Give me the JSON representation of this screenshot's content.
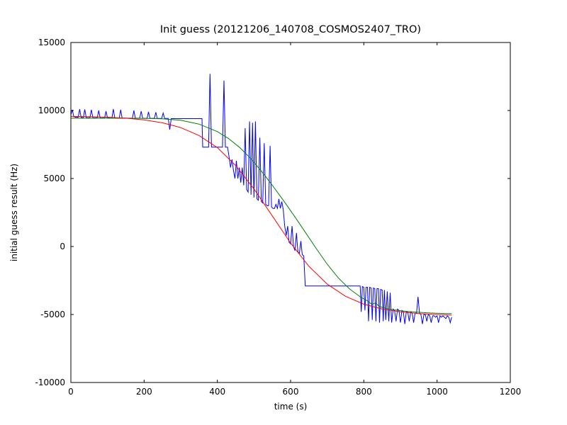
{
  "chart_data": {
    "type": "line",
    "title": "Init guess (20121206_140708_COSMOS2407_TRO)",
    "xlabel": "time (s)",
    "ylabel": "initial guess result (Hz)",
    "xlim": [
      0,
      1200
    ],
    "ylim": [
      -10000,
      15000
    ],
    "xticks": [
      0,
      200,
      400,
      600,
      800,
      1000,
      1200
    ],
    "yticks": [
      -10000,
      -5000,
      0,
      5000,
      10000,
      15000
    ],
    "grid": false,
    "legend": false,
    "frame_color": "#000000",
    "series": [
      {
        "name": "blue",
        "color": "#0000ff",
        "points": [
          [
            0,
            9700
          ],
          [
            4,
            10050
          ],
          [
            8,
            9550
          ],
          [
            14,
            9500
          ],
          [
            20,
            9500
          ],
          [
            24,
            10100
          ],
          [
            28,
            9480
          ],
          [
            34,
            9480
          ],
          [
            38,
            10080
          ],
          [
            42,
            9470
          ],
          [
            52,
            9470
          ],
          [
            56,
            10050
          ],
          [
            60,
            9460
          ],
          [
            72,
            9460
          ],
          [
            76,
            10000
          ],
          [
            80,
            9450
          ],
          [
            92,
            9450
          ],
          [
            96,
            9950
          ],
          [
            100,
            9450
          ],
          [
            112,
            9450
          ],
          [
            116,
            10100
          ],
          [
            120,
            9440
          ],
          [
            132,
            9440
          ],
          [
            136,
            10050
          ],
          [
            140,
            9440
          ],
          [
            152,
            9440
          ],
          [
            156,
            9430
          ],
          [
            168,
            9430
          ],
          [
            172,
            10000
          ],
          [
            176,
            9430
          ],
          [
            188,
            9430
          ],
          [
            192,
            9950
          ],
          [
            196,
            9420
          ],
          [
            208,
            9420
          ],
          [
            212,
            9900
          ],
          [
            216,
            9420
          ],
          [
            228,
            9420
          ],
          [
            232,
            9870
          ],
          [
            236,
            9410
          ],
          [
            248,
            9410
          ],
          [
            252,
            9820
          ],
          [
            256,
            9410
          ],
          [
            266,
            9410
          ],
          [
            270,
            8600
          ],
          [
            274,
            9400
          ],
          [
            290,
            9400
          ],
          [
            310,
            9400
          ],
          [
            330,
            9400
          ],
          [
            350,
            9400
          ],
          [
            358,
            9400
          ],
          [
            360,
            7300
          ],
          [
            368,
            7300
          ],
          [
            376,
            7300
          ],
          [
            380,
            12700
          ],
          [
            384,
            7300
          ],
          [
            392,
            7300
          ],
          [
            400,
            7300
          ],
          [
            410,
            7300
          ],
          [
            414,
            7300
          ],
          [
            418,
            12200
          ],
          [
            422,
            7300
          ],
          [
            428,
            7300
          ],
          [
            432,
            6600
          ],
          [
            436,
            5800
          ],
          [
            440,
            6400
          ],
          [
            444,
            5600
          ],
          [
            448,
            5000
          ],
          [
            452,
            6300
          ],
          [
            456,
            5000
          ],
          [
            460,
            5800
          ],
          [
            464,
            4700
          ],
          [
            468,
            5800
          ],
          [
            472,
            4500
          ],
          [
            476,
            8700
          ],
          [
            480,
            4200
          ],
          [
            484,
            4000
          ],
          [
            488,
            9200
          ],
          [
            492,
            3800
          ],
          [
            496,
            9100
          ],
          [
            500,
            3600
          ],
          [
            504,
            9200
          ],
          [
            508,
            3500
          ],
          [
            512,
            3400
          ],
          [
            516,
            8000
          ],
          [
            520,
            3300
          ],
          [
            524,
            3200
          ],
          [
            528,
            7600
          ],
          [
            532,
            3100
          ],
          [
            536,
            3000
          ],
          [
            540,
            3000
          ],
          [
            544,
            7400
          ],
          [
            548,
            2900
          ],
          [
            552,
            2800
          ],
          [
            556,
            2800
          ],
          [
            560,
            3100
          ],
          [
            564,
            2800
          ],
          [
            568,
            3500
          ],
          [
            572,
            2800
          ],
          [
            576,
            3300
          ],
          [
            580,
            2700
          ],
          [
            584,
            1500
          ],
          [
            588,
            800
          ],
          [
            592,
            1500
          ],
          [
            596,
            300
          ],
          [
            600,
            200
          ],
          [
            604,
            1500
          ],
          [
            608,
            0
          ],
          [
            612,
            -300
          ],
          [
            616,
            1000
          ],
          [
            620,
            -400
          ],
          [
            624,
            -500
          ],
          [
            628,
            400
          ],
          [
            632,
            -600
          ],
          [
            636,
            -700
          ],
          [
            640,
            -2900
          ],
          [
            660,
            -2900
          ],
          [
            680,
            -2900
          ],
          [
            700,
            -2900
          ],
          [
            720,
            -2900
          ],
          [
            740,
            -2900
          ],
          [
            760,
            -2900
          ],
          [
            780,
            -2900
          ],
          [
            790,
            -2900
          ],
          [
            793,
            -4800
          ],
          [
            796,
            -2950
          ],
          [
            800,
            -3000
          ],
          [
            803,
            -4700
          ],
          [
            806,
            -3000
          ],
          [
            810,
            -3000
          ],
          [
            813,
            -5500
          ],
          [
            816,
            -3000
          ],
          [
            820,
            -3050
          ],
          [
            823,
            -5400
          ],
          [
            826,
            -3050
          ],
          [
            830,
            -3100
          ],
          [
            833,
            -5500
          ],
          [
            836,
            -3100
          ],
          [
            840,
            -3100
          ],
          [
            843,
            -5600
          ],
          [
            846,
            -3150
          ],
          [
            850,
            -3200
          ],
          [
            853,
            -5500
          ],
          [
            856,
            -3200
          ],
          [
            860,
            -5400
          ],
          [
            864,
            -3300
          ],
          [
            868,
            -5500
          ],
          [
            872,
            -3400
          ],
          [
            876,
            -5600
          ],
          [
            880,
            -4600
          ],
          [
            884,
            -4700
          ],
          [
            888,
            -5500
          ],
          [
            892,
            -4600
          ],
          [
            896,
            -4700
          ],
          [
            900,
            -5600
          ],
          [
            904,
            -4700
          ],
          [
            908,
            -4800
          ],
          [
            912,
            -5700
          ],
          [
            916,
            -4800
          ],
          [
            920,
            -4800
          ],
          [
            924,
            -5500
          ],
          [
            928,
            -4800
          ],
          [
            932,
            -4900
          ],
          [
            936,
            -5600
          ],
          [
            940,
            -4900
          ],
          [
            944,
            -4900
          ],
          [
            948,
            -3700
          ],
          [
            952,
            -4900
          ],
          [
            956,
            -5000
          ],
          [
            960,
            -5700
          ],
          [
            964,
            -5000
          ],
          [
            968,
            -5000
          ],
          [
            972,
            -5500
          ],
          [
            976,
            -5000
          ],
          [
            980,
            -5100
          ],
          [
            984,
            -5600
          ],
          [
            988,
            -5100
          ],
          [
            992,
            -5100
          ],
          [
            996,
            -5200
          ],
          [
            1000,
            -5100
          ],
          [
            1004,
            -5600
          ],
          [
            1008,
            -5100
          ],
          [
            1012,
            -5200
          ],
          [
            1016,
            -5100
          ],
          [
            1020,
            -5200
          ],
          [
            1024,
            -5300
          ],
          [
            1028,
            -5100
          ],
          [
            1032,
            -5200
          ],
          [
            1036,
            -5600
          ],
          [
            1040,
            -5200
          ]
        ]
      },
      {
        "name": "green",
        "color": "#008000",
        "points": [
          [
            0,
            9430
          ],
          [
            100,
            9430
          ],
          [
            200,
            9420
          ],
          [
            250,
            9390
          ],
          [
            300,
            9280
          ],
          [
            350,
            9000
          ],
          [
            400,
            8450
          ],
          [
            430,
            7950
          ],
          [
            460,
            7300
          ],
          [
            490,
            6500
          ],
          [
            520,
            5550
          ],
          [
            550,
            4500
          ],
          [
            580,
            3400
          ],
          [
            610,
            2250
          ],
          [
            640,
            1050
          ],
          [
            670,
            -150
          ],
          [
            700,
            -1300
          ],
          [
            730,
            -2300
          ],
          [
            760,
            -3100
          ],
          [
            790,
            -3700
          ],
          [
            810,
            -4000
          ],
          [
            822,
            -4250
          ],
          [
            832,
            -4150
          ],
          [
            842,
            -4400
          ],
          [
            860,
            -4550
          ],
          [
            880,
            -4650
          ],
          [
            900,
            -4720
          ],
          [
            920,
            -4780
          ],
          [
            940,
            -4820
          ],
          [
            960,
            -4860
          ],
          [
            980,
            -4890
          ],
          [
            1000,
            -4910
          ],
          [
            1020,
            -4925
          ],
          [
            1040,
            -4940
          ]
        ]
      },
      {
        "name": "red",
        "color": "#ff0000",
        "points": [
          [
            0,
            9570
          ],
          [
            50,
            9545
          ],
          [
            100,
            9505
          ],
          [
            150,
            9430
          ],
          [
            200,
            9305
          ],
          [
            250,
            9095
          ],
          [
            300,
            8740
          ],
          [
            350,
            8160
          ],
          [
            400,
            7270
          ],
          [
            450,
            5955
          ],
          [
            500,
            4240
          ],
          [
            550,
            2250
          ],
          [
            600,
            255
          ],
          [
            650,
            -1455
          ],
          [
            700,
            -2765
          ],
          [
            750,
            -3660
          ],
          [
            800,
            -4240
          ],
          [
            850,
            -4595
          ],
          [
            900,
            -4805
          ],
          [
            950,
            -4930
          ],
          [
            1000,
            -5000
          ],
          [
            1040,
            -5040
          ]
        ]
      }
    ]
  }
}
